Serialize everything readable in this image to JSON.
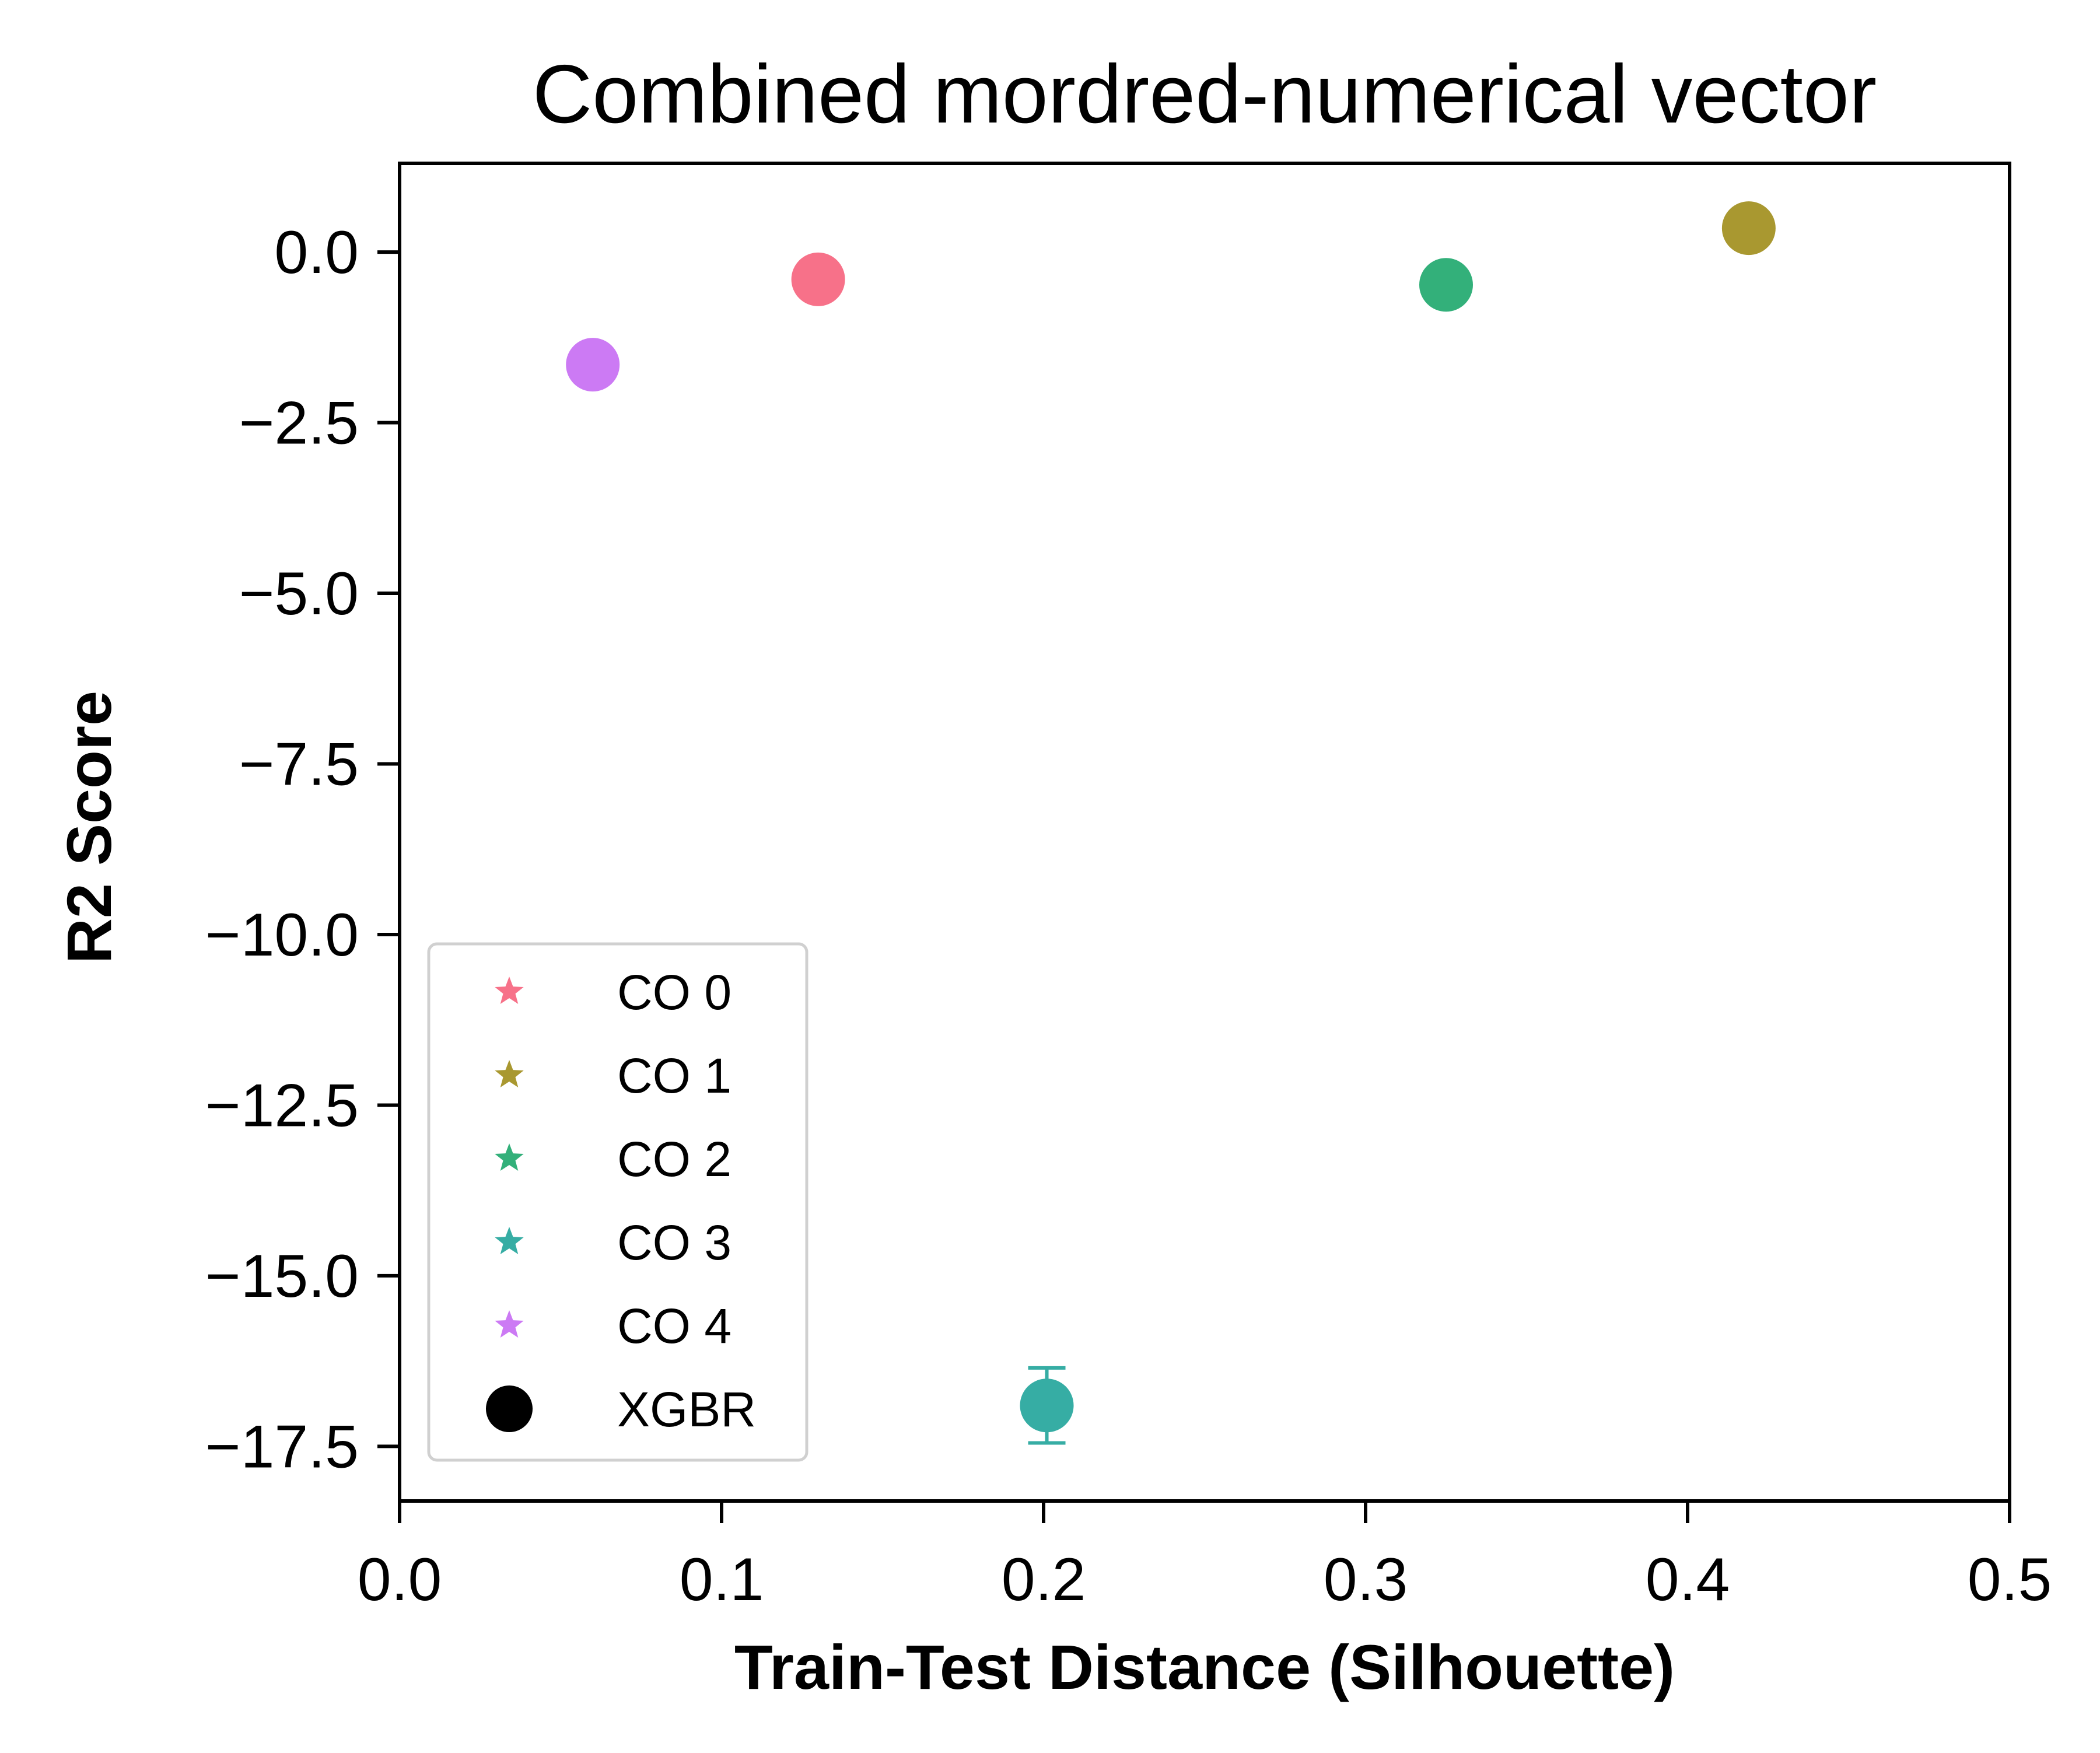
{
  "chart_data": {
    "type": "scatter",
    "title": "Combined mordred-numerical vector",
    "xlabel": "Train-Test Distance (Silhouette)",
    "ylabel": "R2 Score",
    "xlim": [
      0.0,
      0.5
    ],
    "ylim": [
      -18.3,
      1.3
    ],
    "xticks": [
      0.0,
      0.1,
      0.2,
      0.3,
      0.4,
      0.5
    ],
    "xtick_labels": [
      "0.0",
      "0.1",
      "0.2",
      "0.3",
      "0.4",
      "0.5"
    ],
    "yticks": [
      0.0,
      -2.5,
      -5.0,
      -7.5,
      -10.0,
      -12.5,
      -15.0,
      -17.5
    ],
    "ytick_labels": [
      "0.0",
      "−2.5",
      "−5.0",
      "−7.5",
      "−10.0",
      "−12.5",
      "−15.0",
      "−17.5"
    ],
    "grid": false,
    "legend_position": "bottom-left",
    "series": [
      {
        "name": "CO 0",
        "color": "#f77189",
        "points": [
          {
            "x": 0.13,
            "y": -0.4,
            "err": 0.05
          }
        ]
      },
      {
        "name": "CO 1",
        "color": "#a99830",
        "points": [
          {
            "x": 0.419,
            "y": 0.35,
            "err": 0.05
          }
        ]
      },
      {
        "name": "CO 2",
        "color": "#33b07a",
        "points": [
          {
            "x": 0.325,
            "y": -0.48,
            "err": 0.05
          }
        ]
      },
      {
        "name": "CO 3",
        "color": "#36ada4",
        "points": [
          {
            "x": 0.201,
            "y": -16.9,
            "err": 0.55
          }
        ]
      },
      {
        "name": "CO 4",
        "color": "#cc7af4",
        "points": [
          {
            "x": 0.06,
            "y": -1.65,
            "err": 0.05
          }
        ]
      }
    ],
    "legend": [
      {
        "label": "CO 0",
        "marker": "star",
        "color": "#f77189"
      },
      {
        "label": "CO 1",
        "marker": "star",
        "color": "#a99830"
      },
      {
        "label": "CO 2",
        "marker": "star",
        "color": "#33b07a"
      },
      {
        "label": "CO 3",
        "marker": "star",
        "color": "#36ada4"
      },
      {
        "label": "CO 4",
        "marker": "star",
        "color": "#cc7af4"
      },
      {
        "label": "XGBR",
        "marker": "circle",
        "color": "#000000"
      }
    ],
    "point_marker": "circle"
  }
}
